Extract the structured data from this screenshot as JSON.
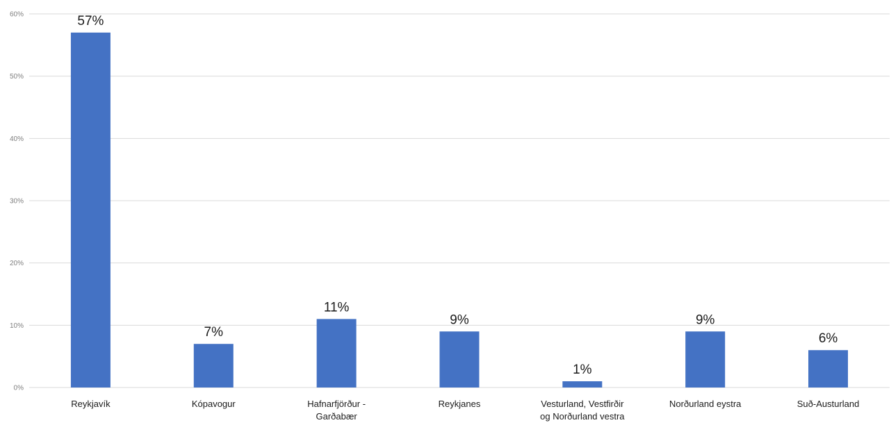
{
  "chart_data": {
    "type": "bar",
    "title": "",
    "xlabel": "",
    "ylabel": "",
    "categories": [
      [
        "Reykjavík"
      ],
      [
        "Kópavogur"
      ],
      [
        "Hafnarfjörður -",
        "Garðabær"
      ],
      [
        "Reykjanes"
      ],
      [
        "Vesturland, Vestfirðir",
        "og Norðurland vestra"
      ],
      [
        "Norðurland eystra"
      ],
      [
        "Suð-Austurland"
      ]
    ],
    "values": [
      57,
      7,
      11,
      9,
      1,
      9,
      6
    ],
    "data_labels": [
      "57%",
      "7%",
      "11%",
      "9%",
      "1%",
      "9%",
      "6%"
    ],
    "ylim": [
      0,
      60
    ],
    "yticks": [
      0,
      10,
      20,
      30,
      40,
      50,
      60
    ],
    "ytick_labels": [
      "0%",
      "10%",
      "20%",
      "30%",
      "40%",
      "50%",
      "60%"
    ],
    "grid": true,
    "legend": "none",
    "bar_color": "#4472c4",
    "grid_color": "#d9d9d9"
  }
}
